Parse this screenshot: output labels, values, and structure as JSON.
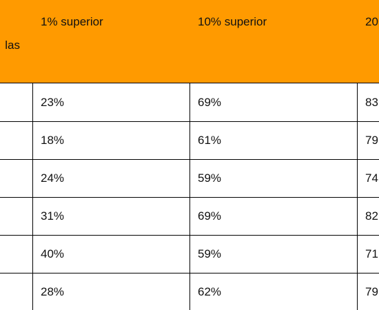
{
  "table": {
    "header": [
      "las",
      "1% superior",
      "10% superior",
      "20"
    ],
    "rows": [
      [
        "23%",
        "69%",
        "83"
      ],
      [
        "18%",
        "61%",
        "79"
      ],
      [
        "24%",
        "59%",
        "74"
      ],
      [
        "31%",
        "69%",
        "82"
      ],
      [
        "40%",
        "59%",
        "71"
      ],
      [
        "28%",
        "62%",
        "79"
      ]
    ]
  }
}
